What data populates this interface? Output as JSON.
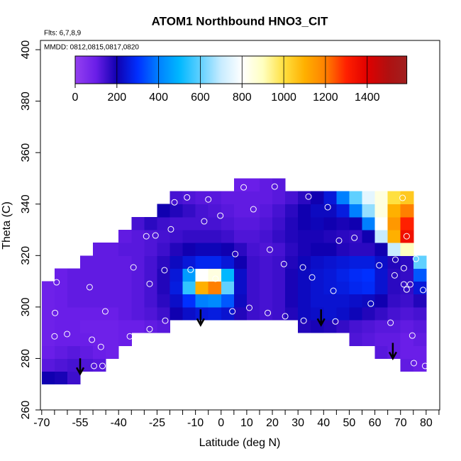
{
  "chart_data": {
    "type": "heatmap",
    "title": "ATOM1 Northbound HNO3_CIT",
    "subtitle": "Flts: 6,7,8,9",
    "annotation": "MMDD: 0812,0815,0817,0820",
    "x_label": "Latitude (deg N)",
    "y_label": "Theta (C)",
    "xlim": [
      -70.5,
      85.3
    ],
    "ylim": [
      260,
      403.6
    ],
    "xticks": [
      -70,
      -55,
      -40,
      -25,
      -10,
      0,
      10,
      20,
      30,
      40,
      50,
      60,
      70,
      80
    ],
    "xminor_ticks": [
      -65,
      -60,
      -50,
      -45,
      -35,
      -30,
      -20,
      -15,
      -5,
      5,
      15,
      25,
      35,
      45,
      55,
      65,
      75,
      85
    ],
    "yticks": [
      260,
      280,
      300,
      320,
      340,
      360,
      380,
      400
    ],
    "colorbar_lim": [
      0,
      1590
    ],
    "colorbar_ticks": [
      0,
      200,
      400,
      600,
      800,
      1000,
      1200,
      1400
    ],
    "colorscale": [
      {
        "value": 0,
        "color": "#9440f0"
      },
      {
        "value": 100,
        "color": "#6a1ee8"
      },
      {
        "value": 200,
        "color": "#1000b0"
      },
      {
        "value": 300,
        "color": "#0030ff"
      },
      {
        "value": 400,
        "color": "#0080ff"
      },
      {
        "value": 500,
        "color": "#00b8ff"
      },
      {
        "value": 600,
        "color": "#60d0ff"
      },
      {
        "value": 700,
        "color": "#c8ecff"
      },
      {
        "value": 800,
        "color": "#ffffff"
      },
      {
        "value": 900,
        "color": "#ffffc0"
      },
      {
        "value": 1000,
        "color": "#ffe040"
      },
      {
        "value": 1100,
        "color": "#ffb000"
      },
      {
        "value": 1200,
        "color": "#ff8000"
      },
      {
        "value": 1300,
        "color": "#ff2000"
      },
      {
        "value": 1400,
        "color": "#e00000"
      },
      {
        "value": 1500,
        "color": "#b01010"
      },
      {
        "value": 1590,
        "color": "#a02020"
      }
    ],
    "x": [
      -67.5,
      -62.5,
      -57.5,
      -52.5,
      -47.5,
      -42.5,
      -37.5,
      -32.5,
      -27.5,
      -22.5,
      -17.5,
      -12.5,
      -7.5,
      -2.5,
      2.5,
      7.5,
      12.5,
      17.5,
      22.5,
      27.5,
      32.5,
      37.5,
      42.5,
      47.5,
      52.5,
      57.5,
      62.5,
      67.5,
      72.5,
      77.5
    ],
    "y": [
      272.5,
      277.5,
      282.5,
      287.5,
      292.5,
      297.5,
      302.5,
      307.5,
      312.5,
      317.5,
      322.5,
      327.5,
      332.5,
      337.5,
      342.5,
      347.5
    ],
    "z": [
      [
        200,
        190,
        150,
        null,
        null,
        null,
        null,
        null,
        null,
        null,
        null,
        null,
        null,
        null,
        null,
        null,
        null,
        null,
        null,
        null,
        null,
        null,
        null,
        null,
        null,
        null,
        null,
        null,
        null,
        null
      ],
      [
        120,
        130,
        140,
        130,
        120,
        null,
        null,
        null,
        null,
        null,
        null,
        null,
        null,
        null,
        null,
        null,
        null,
        null,
        null,
        null,
        null,
        null,
        null,
        null,
        null,
        null,
        null,
        null,
        110,
        100
      ],
      [
        100,
        110,
        120,
        110,
        100,
        90,
        null,
        null,
        null,
        null,
        null,
        null,
        null,
        null,
        null,
        null,
        null,
        null,
        null,
        null,
        null,
        null,
        null,
        null,
        null,
        null,
        120,
        110,
        100,
        100
      ],
      [
        90,
        100,
        100,
        100,
        90,
        90,
        100,
        null,
        null,
        null,
        null,
        null,
        null,
        null,
        null,
        null,
        null,
        null,
        null,
        null,
        null,
        null,
        null,
        null,
        130,
        120,
        110,
        110,
        100,
        110
      ],
      [
        90,
        100,
        100,
        90,
        90,
        90,
        100,
        100,
        110,
        120,
        null,
        null,
        null,
        null,
        null,
        null,
        null,
        null,
        null,
        null,
        180,
        190,
        180,
        160,
        140,
        130,
        120,
        120,
        110,
        120
      ],
      [
        90,
        100,
        100,
        100,
        100,
        100,
        110,
        120,
        130,
        150,
        200,
        230,
        250,
        260,
        240,
        180,
        150,
        140,
        150,
        180,
        220,
        230,
        240,
        230,
        210,
        180,
        160,
        140,
        130,
        140
      ],
      [
        90,
        100,
        110,
        110,
        110,
        110,
        110,
        120,
        140,
        170,
        230,
        300,
        400,
        420,
        350,
        220,
        150,
        140,
        150,
        190,
        220,
        240,
        240,
        240,
        230,
        220,
        200,
        160,
        150,
        180
      ],
      [
        90,
        100,
        110,
        110,
        110,
        110,
        110,
        120,
        140,
        180,
        260,
        550,
        1100,
        1200,
        600,
        230,
        150,
        140,
        150,
        190,
        220,
        240,
        250,
        260,
        280,
        290,
        240,
        170,
        160,
        250
      ],
      [
        null,
        100,
        110,
        110,
        110,
        110,
        110,
        120,
        140,
        180,
        250,
        450,
        800,
        850,
        500,
        230,
        150,
        140,
        150,
        190,
        220,
        240,
        250,
        270,
        290,
        300,
        240,
        170,
        160,
        350
      ],
      [
        null,
        null,
        null,
        110,
        110,
        110,
        110,
        120,
        140,
        170,
        220,
        250,
        280,
        280,
        250,
        200,
        150,
        140,
        150,
        180,
        210,
        230,
        240,
        250,
        260,
        260,
        230,
        180,
        170,
        600
      ],
      [
        null,
        null,
        null,
        null,
        110,
        110,
        120,
        120,
        130,
        150,
        180,
        200,
        210,
        210,
        200,
        170,
        140,
        130,
        140,
        170,
        190,
        200,
        200,
        180,
        170,
        170,
        200,
        700,
        900,
        null
      ],
      [
        null,
        null,
        null,
        null,
        null,
        null,
        110,
        120,
        130,
        140,
        150,
        160,
        160,
        160,
        150,
        130,
        130,
        140,
        160,
        180,
        190,
        190,
        180,
        170,
        160,
        200,
        700,
        1100,
        1350,
        null
      ],
      [
        null,
        null,
        null,
        null,
        null,
        null,
        null,
        140,
        170,
        150,
        140,
        140,
        140,
        140,
        130,
        120,
        120,
        130,
        150,
        180,
        200,
        210,
        200,
        190,
        200,
        400,
        800,
        1150,
        1300,
        null
      ],
      [
        null,
        null,
        null,
        null,
        null,
        null,
        null,
        null,
        null,
        200,
        180,
        160,
        140,
        130,
        120,
        110,
        110,
        120,
        140,
        170,
        200,
        220,
        220,
        260,
        400,
        650,
        850,
        1100,
        1200,
        null
      ],
      [
        null,
        null,
        null,
        null,
        null,
        null,
        null,
        null,
        null,
        null,
        140,
        130,
        120,
        120,
        110,
        110,
        110,
        110,
        120,
        140,
        170,
        200,
        250,
        400,
        600,
        750,
        850,
        1000,
        1050,
        null
      ],
      [
        null,
        null,
        null,
        null,
        null,
        null,
        null,
        null,
        null,
        null,
        null,
        null,
        null,
        null,
        null,
        100,
        100,
        110,
        120,
        null,
        null,
        null,
        null,
        null,
        null,
        null,
        null,
        null,
        null,
        null
      ]
    ],
    "points": {
      "x": [
        -64.2,
        -64.8,
        -65.0,
        -60.1,
        -51.3,
        -50.4,
        -46.9,
        -45.2,
        -49.6,
        -46.3,
        -34.2,
        -35.6,
        -29.2,
        -25.6,
        -27.9,
        -27.9,
        -22.1,
        -21.8,
        -19.6,
        -18.2,
        -13.3,
        -11.9,
        -6.6,
        -5.0,
        -2.2,
        -0.3,
        4.4,
        5.5,
        8.8,
        11.0,
        12.6,
        18.2,
        19.0,
        20.9,
        24.5,
        25.0,
        31.9,
        32.2,
        34.1,
        35.5,
        41.6,
        43.8,
        44.6,
        46.0,
        52.0,
        58.4,
        61.7,
        66.1,
        67.7,
        68.0,
        70.8,
        71.3,
        71.3,
        72.4,
        73.8,
        72.4,
        74.6,
        75.2,
        76.0,
        78.8,
        79.6
      ],
      "y": [
        309.6,
        297.7,
        288.6,
        289.5,
        307.7,
        287.3,
        284.5,
        298.3,
        277.1,
        277.1,
        315.4,
        288.6,
        327.5,
        327.8,
        291.4,
        309.0,
        314.3,
        294.7,
        330.2,
        340.7,
        342.6,
        314.5,
        333.3,
        341.8,
        311.0,
        335.5,
        298.3,
        320.6,
        346.5,
        299.7,
        338.0,
        297.7,
        322.3,
        346.8,
        316.7,
        296.4,
        315.4,
        294.7,
        342.9,
        311.5,
        338.8,
        306.3,
        294.4,
        325.8,
        326.9,
        301.3,
        316.2,
        293.9,
        312.3,
        318.4,
        342.4,
        315.1,
        308.8,
        306.8,
        308.8,
        327.5,
        288.9,
        278.2,
        318.7,
        306.6,
        277.1
      ]
    },
    "arrows": {
      "x": [
        -55,
        -8,
        39,
        67
      ],
      "y": [
        274,
        293,
        293,
        280
      ]
    }
  }
}
